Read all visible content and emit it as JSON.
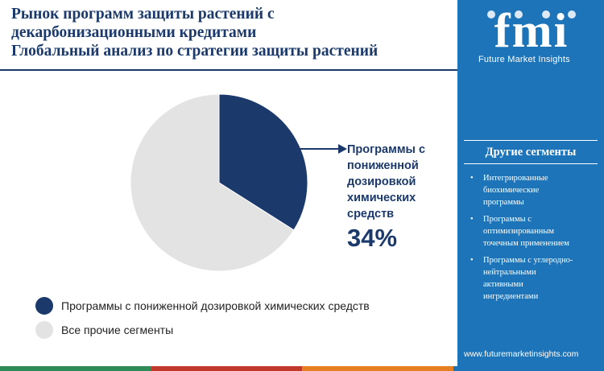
{
  "header": {
    "title_lines": [
      "Рынок программ защиты растений с",
      "декарбонизационными кредитами",
      "Глобальный анализ по стратегии защиты растений"
    ]
  },
  "chart_data": {
    "type": "pie",
    "slices": [
      {
        "label": "Программы с пониженной дозировкой химических средств",
        "value": 34,
        "color": "#1b3a6b"
      },
      {
        "label": "Все прочие сегменты",
        "value": 66,
        "color": "#e3e3e3"
      }
    ],
    "callout": {
      "label_lines": [
        "Программы с",
        "пониженной",
        "дозировкой",
        "химических",
        "средств"
      ],
      "value_text": "34%"
    },
    "legend": [
      {
        "label": "Программы с пониженной дозировкой химических средств",
        "color": "#1b3a6b"
      },
      {
        "label": "Все прочие сегменты",
        "color": "#e3e3e3"
      }
    ],
    "legend_position": "bottom-left"
  },
  "sidebar": {
    "logo_text": "fmi",
    "logo_tagline": "Future Market Insights",
    "heading": "Другие сегменты",
    "items": [
      {
        "lines": [
          "Интегрированные",
          "биохимические",
          "программы"
        ]
      },
      {
        "lines": [
          "Программы с",
          "оптимизированным",
          "точечным применением"
        ]
      },
      {
        "lines": [
          "Программы с углеродно-",
          "нейтральными",
          "активными",
          "ингредиентами"
        ]
      }
    ],
    "url": "www.futuremarketinsights.com"
  },
  "colors": {
    "navy": "#1b3a6b",
    "sidebar_blue": "#1d74b8",
    "pie_grey": "#e3e3e3",
    "bottom_bar": [
      "#2e8b57",
      "#c0392b",
      "#e67e22",
      "#1d74b8"
    ]
  }
}
